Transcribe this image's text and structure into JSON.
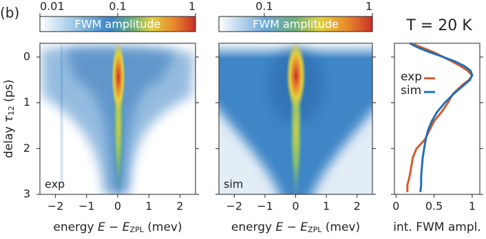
{
  "panel_label": "(b)",
  "chart_data": [
    {
      "type": "heatmap",
      "label": "exp",
      "colorbar_label": "FWM amplitude",
      "colorbar_log": true,
      "colorbar_lim": [
        0.01,
        1
      ],
      "colorbar_ticks": [
        0.01,
        0.1,
        1
      ],
      "xlabel": {
        "text": "energy",
        "var": "E − E",
        "sub": "ZPL",
        "unit": "(mev)"
      },
      "ylabel": {
        "text": "delay",
        "var": "τ",
        "sub": "12",
        "unit": "(ps)"
      },
      "xlim": [
        -2.5,
        2.5
      ],
      "xticks": [
        {
          "value": -2,
          "label": "−2"
        },
        {
          "value": -1,
          "label": "−1"
        },
        0,
        1,
        2
      ],
      "ylim": [
        -0.3,
        3
      ],
      "yticks": [
        0,
        1,
        2,
        3
      ]
    },
    {
      "type": "heatmap",
      "label": "sim",
      "colorbar_label": "FWM amplitude",
      "colorbar_log": true,
      "colorbar_lim": [
        0.038,
        1
      ],
      "colorbar_ticks": [
        0.1,
        1
      ],
      "xlabel": {
        "text": "energy",
        "var": "E − E",
        "sub": "ZPL",
        "unit": "(mev)"
      },
      "xlim": [
        -2.5,
        2.5
      ],
      "xticks": [
        {
          "value": -2,
          "label": "−2"
        },
        {
          "value": -1,
          "label": "−1"
        },
        0,
        1,
        2
      ],
      "ylim": [
        -0.3,
        3
      ],
      "yticks": [
        0,
        1,
        2,
        3
      ]
    },
    {
      "type": "line",
      "title": "T = 20 K",
      "xlabel": "int. FWM ampl.",
      "delay": [
        -0.3,
        -0.2,
        -0.1,
        0,
        0.1,
        0.2,
        0.3,
        0.4,
        0.5,
        0.6,
        0.8,
        1.0,
        1.2,
        1.4,
        1.6,
        1.8,
        2.0,
        2.2,
        2.4,
        2.6,
        2.8,
        2.95
      ],
      "series": [
        {
          "name": "exp",
          "color": "#d4582c",
          "values": [
            0.2,
            0.35,
            0.5,
            0.62,
            0.74,
            0.85,
            0.94,
            1.0,
            0.96,
            0.88,
            0.75,
            0.68,
            0.6,
            0.5,
            0.44,
            0.38,
            0.27,
            0.22,
            0.2,
            0.18,
            0.15,
            0.15
          ]
        },
        {
          "name": "sim",
          "color": "#1f6fb5",
          "values": [
            0.18,
            0.3,
            0.45,
            0.62,
            0.78,
            0.9,
            0.98,
            1.0,
            0.97,
            0.9,
            0.76,
            0.64,
            0.54,
            0.47,
            0.42,
            0.39,
            0.37,
            0.35,
            0.34,
            0.33,
            0.33,
            0.32
          ]
        }
      ],
      "xlim": [
        -0.02,
        1.1
      ],
      "xticks": [
        0,
        0.5,
        1
      ],
      "ylim": [
        -0.3,
        3
      ],
      "yticks": [
        0,
        1,
        2,
        3
      ]
    }
  ]
}
